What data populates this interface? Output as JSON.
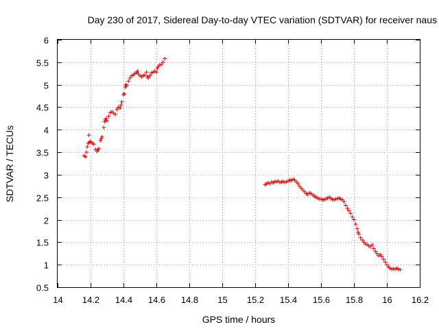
{
  "chart_data": {
    "type": "scatter",
    "title": "Day 230 of 2017, Sidereal Day-to-day VTEC variation (SDTVAR) for receiver naus",
    "xlabel": "GPS time / hours",
    "ylabel": "SDTVAR / TECUs",
    "xlim": [
      14,
      16.2
    ],
    "ylim": [
      0.5,
      6
    ],
    "x_ticks": [
      14,
      14.2,
      14.4,
      14.6,
      14.8,
      15,
      15.2,
      15.4,
      15.6,
      15.8,
      16,
      16.2
    ],
    "x_tick_labels": [
      "14",
      "14.2",
      "14.4",
      "14.6",
      "14.8",
      "15",
      "15.2",
      "15.4",
      "15.6",
      "15.8",
      "16",
      "16.2"
    ],
    "y_ticks": [
      0.5,
      1,
      1.5,
      2,
      2.5,
      3,
      3.5,
      4,
      4.5,
      5,
      5.5,
      6
    ],
    "y_tick_labels": [
      "0.5",
      "1",
      "1.5",
      "2",
      "2.5",
      "3",
      "3.5",
      "4",
      "4.5",
      "5",
      "5.5",
      "6"
    ],
    "grid": true,
    "marker": "+",
    "color": "#e00000",
    "series": [
      {
        "name": "SDTVAR",
        "points": [
          [
            14.16,
            3.42
          ],
          [
            14.17,
            3.4
          ],
          [
            14.175,
            3.5
          ],
          [
            14.18,
            3.62
          ],
          [
            14.185,
            3.7
          ],
          [
            14.19,
            3.88
          ],
          [
            14.195,
            3.72
          ],
          [
            14.2,
            3.74
          ],
          [
            14.21,
            3.7
          ],
          [
            14.22,
            3.68
          ],
          [
            14.23,
            3.56
          ],
          [
            14.24,
            3.52
          ],
          [
            14.245,
            3.55
          ],
          [
            14.25,
            3.58
          ],
          [
            14.26,
            3.76
          ],
          [
            14.265,
            3.8
          ],
          [
            14.27,
            3.84
          ],
          [
            14.28,
            4.05
          ],
          [
            14.285,
            4.18
          ],
          [
            14.29,
            4.22
          ],
          [
            14.295,
            4.25
          ],
          [
            14.3,
            4.2
          ],
          [
            14.31,
            4.3
          ],
          [
            14.32,
            4.38
          ],
          [
            14.33,
            4.4
          ],
          [
            14.34,
            4.37
          ],
          [
            14.35,
            4.34
          ],
          [
            14.36,
            4.45
          ],
          [
            14.37,
            4.5
          ],
          [
            14.38,
            4.48
          ],
          [
            14.385,
            4.55
          ],
          [
            14.39,
            4.62
          ],
          [
            14.4,
            4.78
          ],
          [
            14.405,
            4.8
          ],
          [
            14.41,
            4.95
          ],
          [
            14.415,
            5.0
          ],
          [
            14.42,
            4.98
          ],
          [
            14.43,
            5.08
          ],
          [
            14.44,
            5.15
          ],
          [
            14.45,
            5.2
          ],
          [
            14.46,
            5.22
          ],
          [
            14.47,
            5.25
          ],
          [
            14.48,
            5.27
          ],
          [
            14.485,
            5.3
          ],
          [
            14.49,
            5.24
          ],
          [
            14.5,
            5.2
          ],
          [
            14.51,
            5.18
          ],
          [
            14.52,
            5.2
          ],
          [
            14.53,
            5.22
          ],
          [
            14.54,
            5.28
          ],
          [
            14.545,
            5.18
          ],
          [
            14.55,
            5.15
          ],
          [
            14.56,
            5.2
          ],
          [
            14.57,
            5.26
          ],
          [
            14.58,
            5.28
          ],
          [
            14.59,
            5.3
          ],
          [
            14.6,
            5.28
          ],
          [
            14.605,
            5.36
          ],
          [
            14.61,
            5.4
          ],
          [
            14.62,
            5.44
          ],
          [
            14.63,
            5.45
          ],
          [
            14.64,
            5.5
          ],
          [
            14.65,
            5.58
          ],
          [
            15.26,
            2.78
          ],
          [
            15.27,
            2.8
          ],
          [
            15.28,
            2.82
          ],
          [
            15.29,
            2.8
          ],
          [
            15.3,
            2.84
          ],
          [
            15.31,
            2.82
          ],
          [
            15.32,
            2.85
          ],
          [
            15.33,
            2.84
          ],
          [
            15.34,
            2.86
          ],
          [
            15.35,
            2.83
          ],
          [
            15.36,
            2.84
          ],
          [
            15.37,
            2.85
          ],
          [
            15.38,
            2.83
          ],
          [
            15.39,
            2.84
          ],
          [
            15.4,
            2.86
          ],
          [
            15.41,
            2.88
          ],
          [
            15.42,
            2.87
          ],
          [
            15.43,
            2.9
          ],
          [
            15.44,
            2.88
          ],
          [
            15.45,
            2.84
          ],
          [
            15.46,
            2.8
          ],
          [
            15.47,
            2.74
          ],
          [
            15.48,
            2.7
          ],
          [
            15.49,
            2.66
          ],
          [
            15.5,
            2.62
          ],
          [
            15.51,
            2.58
          ],
          [
            15.52,
            2.56
          ],
          [
            15.53,
            2.6
          ],
          [
            15.54,
            2.58
          ],
          [
            15.55,
            2.55
          ],
          [
            15.56,
            2.52
          ],
          [
            15.57,
            2.5
          ],
          [
            15.58,
            2.48
          ],
          [
            15.59,
            2.46
          ],
          [
            15.6,
            2.46
          ],
          [
            15.61,
            2.44
          ],
          [
            15.62,
            2.45
          ],
          [
            15.63,
            2.46
          ],
          [
            15.64,
            2.48
          ],
          [
            15.65,
            2.5
          ],
          [
            15.66,
            2.47
          ],
          [
            15.67,
            2.45
          ],
          [
            15.68,
            2.44
          ],
          [
            15.69,
            2.46
          ],
          [
            15.7,
            2.47
          ],
          [
            15.71,
            2.48
          ],
          [
            15.72,
            2.46
          ],
          [
            15.73,
            2.44
          ],
          [
            15.74,
            2.4
          ],
          [
            15.75,
            2.32
          ],
          [
            15.76,
            2.25
          ],
          [
            15.77,
            2.2
          ],
          [
            15.78,
            2.14
          ],
          [
            15.79,
            2.06
          ],
          [
            15.8,
            2.0
          ],
          [
            15.81,
            1.9
          ],
          [
            15.82,
            1.8
          ],
          [
            15.825,
            1.72
          ],
          [
            15.83,
            1.68
          ],
          [
            15.84,
            1.6
          ],
          [
            15.85,
            1.55
          ],
          [
            15.86,
            1.5
          ],
          [
            15.87,
            1.46
          ],
          [
            15.88,
            1.45
          ],
          [
            15.89,
            1.42
          ],
          [
            15.9,
            1.4
          ],
          [
            15.91,
            1.44
          ],
          [
            15.92,
            1.36
          ],
          [
            15.93,
            1.3
          ],
          [
            15.94,
            1.25
          ],
          [
            15.95,
            1.2
          ],
          [
            15.96,
            1.22
          ],
          [
            15.97,
            1.18
          ],
          [
            15.98,
            1.12
          ],
          [
            15.99,
            1.06
          ],
          [
            16.0,
            1.0
          ],
          [
            16.01,
            0.95
          ],
          [
            16.02,
            0.92
          ],
          [
            16.03,
            0.9
          ],
          [
            16.04,
            0.91
          ],
          [
            16.05,
            0.9
          ],
          [
            16.06,
            0.92
          ],
          [
            16.07,
            0.9
          ],
          [
            16.08,
            0.89
          ]
        ]
      }
    ]
  }
}
